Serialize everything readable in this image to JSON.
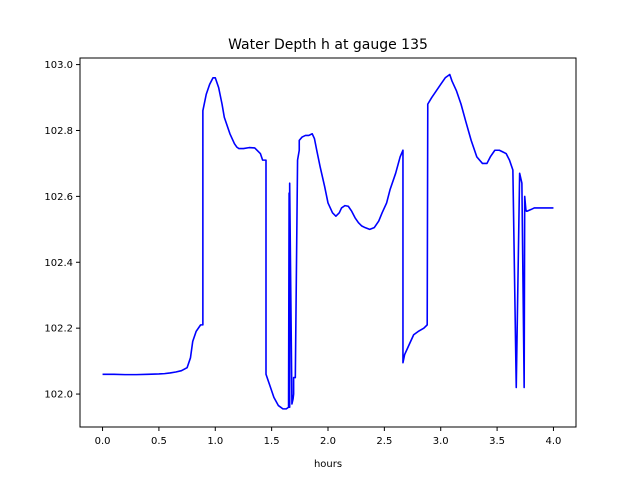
{
  "chart_data": {
    "type": "line",
    "title": "Water Depth h at gauge 135",
    "xlabel": "hours",
    "ylabel": "",
    "xlim": [
      -0.2,
      4.2
    ],
    "ylim": [
      101.9,
      103.02
    ],
    "xticks": [
      0.0,
      0.5,
      1.0,
      1.5,
      2.0,
      2.5,
      3.0,
      3.5,
      4.0
    ],
    "xtick_labels": [
      "0.0",
      "0.5",
      "1.0",
      "1.5",
      "2.0",
      "2.5",
      "3.0",
      "3.5",
      "4.0"
    ],
    "yticks": [
      102.0,
      102.2,
      102.4,
      102.6,
      102.8,
      103.0
    ],
    "ytick_labels": [
      "102.0",
      "102.2",
      "102.4",
      "102.6",
      "102.8",
      "103.0"
    ],
    "grid": false,
    "series": [
      {
        "color": "#0000ff",
        "x": [
          0.0,
          0.1,
          0.2,
          0.3,
          0.4,
          0.5,
          0.55,
          0.6,
          0.65,
          0.7,
          0.75,
          0.78,
          0.8,
          0.83,
          0.87,
          0.89,
          0.89,
          0.92,
          0.95,
          0.98,
          1.0,
          1.03,
          1.06,
          1.08,
          1.1,
          1.13,
          1.17,
          1.19,
          1.21,
          1.25,
          1.3,
          1.35,
          1.4,
          1.42,
          1.45,
          1.45,
          1.48,
          1.52,
          1.56,
          1.6,
          1.63,
          1.65,
          1.655,
          1.655,
          1.66,
          1.66,
          1.68,
          1.69,
          1.695,
          1.695,
          1.71,
          1.73,
          1.745,
          1.745,
          1.77,
          1.8,
          1.83,
          1.86,
          1.88,
          1.9,
          1.93,
          1.97,
          2.0,
          2.04,
          2.07,
          2.1,
          2.12,
          2.15,
          2.18,
          2.21,
          2.24,
          2.27,
          2.3,
          2.33,
          2.37,
          2.41,
          2.45,
          2.48,
          2.52,
          2.55,
          2.6,
          2.64,
          2.665,
          2.665,
          2.68,
          2.72,
          2.76,
          2.8,
          2.85,
          2.88,
          2.885,
          2.885,
          2.92,
          2.96,
          3.0,
          3.04,
          3.08,
          3.1,
          3.14,
          3.18,
          3.22,
          3.27,
          3.32,
          3.37,
          3.41,
          3.44,
          3.48,
          3.52,
          3.55,
          3.58,
          3.61,
          3.64,
          3.67,
          3.7,
          3.72,
          3.74,
          3.745,
          3.75,
          3.755,
          3.76,
          3.765,
          3.8,
          3.83,
          3.86,
          3.9,
          3.94,
          3.97,
          4.0
        ],
        "y": [
          102.06,
          102.06,
          102.059,
          102.059,
          102.06,
          102.061,
          102.062,
          102.064,
          102.067,
          102.071,
          102.08,
          102.11,
          102.16,
          102.19,
          102.21,
          102.21,
          102.86,
          102.91,
          102.94,
          102.96,
          102.96,
          102.93,
          102.88,
          102.84,
          102.82,
          102.79,
          102.76,
          102.75,
          102.745,
          102.745,
          102.748,
          102.747,
          102.73,
          102.71,
          102.71,
          102.06,
          102.03,
          101.99,
          101.965,
          101.955,
          101.955,
          101.96,
          102.61,
          101.96,
          101.96,
          102.64,
          101.97,
          101.985,
          102.0,
          102.05,
          102.05,
          102.71,
          102.74,
          102.77,
          102.78,
          102.785,
          102.785,
          102.79,
          102.775,
          102.74,
          102.69,
          102.63,
          102.58,
          102.55,
          102.54,
          102.55,
          102.565,
          102.572,
          102.57,
          102.555,
          102.535,
          102.52,
          102.51,
          102.505,
          102.5,
          102.505,
          102.525,
          102.55,
          102.58,
          102.62,
          102.67,
          102.72,
          102.74,
          102.095,
          102.12,
          102.15,
          102.18,
          102.19,
          102.2,
          102.21,
          102.86,
          102.88,
          102.9,
          102.92,
          102.94,
          102.96,
          102.97,
          102.95,
          102.92,
          102.88,
          102.83,
          102.77,
          102.72,
          102.7,
          102.7,
          102.72,
          102.74,
          102.74,
          102.735,
          102.73,
          102.71,
          102.68,
          102.02,
          102.67,
          102.64,
          102.02,
          102.6,
          102.58,
          102.56,
          102.555,
          102.555,
          102.56,
          102.565,
          102.565,
          102.565,
          102.565,
          102.565,
          102.565
        ]
      }
    ]
  }
}
